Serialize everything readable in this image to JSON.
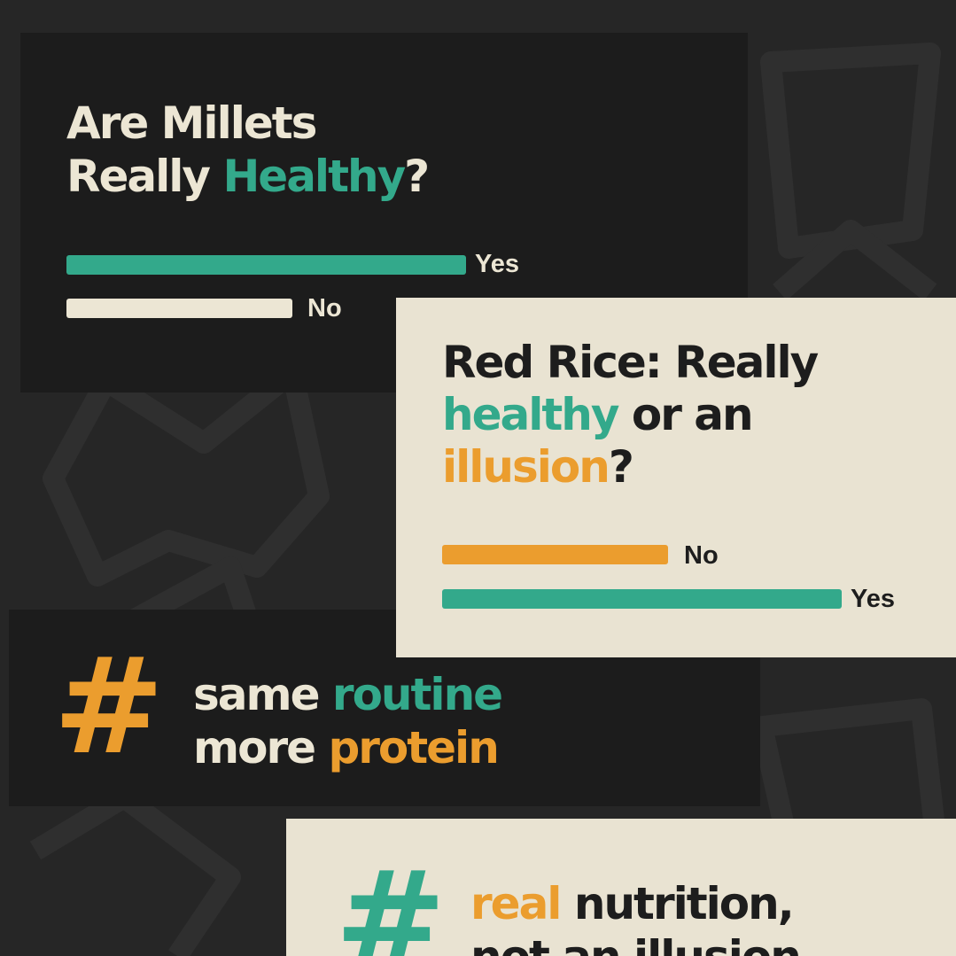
{
  "colors": {
    "background": "#262626",
    "dark_card": "#1c1c1c",
    "cream_card": "#e9e3d2",
    "teal": "#33a98b",
    "orange": "#eb9d2e",
    "cream_text": "#ece6d4",
    "dark_text": "#1d1d1d"
  },
  "card1": {
    "title_line1": "Are Millets",
    "title_line2_start": "Really ",
    "title_line2_highlight": "Healthy",
    "title_line2_end": "?",
    "poll": [
      {
        "label": "Yes",
        "share": 1.0,
        "color": "#33a98b"
      },
      {
        "label": "No",
        "share": 0.57,
        "color": "#ece6d4"
      }
    ]
  },
  "card2": {
    "title_line1": "Red Rice: Really",
    "title_line2_highlight": "healthy",
    "title_line2_end": " or an",
    "title_line3_highlight": "illusion",
    "title_line3_end": "?",
    "poll": [
      {
        "label": "No",
        "share": 0.56,
        "color": "#eb9d2e"
      },
      {
        "label": "Yes",
        "share": 1.0,
        "color": "#33a98b"
      }
    ]
  },
  "card3": {
    "hash": "#",
    "line1_start": "same ",
    "line1_highlight": "routine",
    "line2_start": "more ",
    "line2_highlight": "protein"
  },
  "card4": {
    "hash": "#",
    "line1_highlight": "real",
    "line1_end": " nutrition,",
    "line2": "not an illusion"
  }
}
